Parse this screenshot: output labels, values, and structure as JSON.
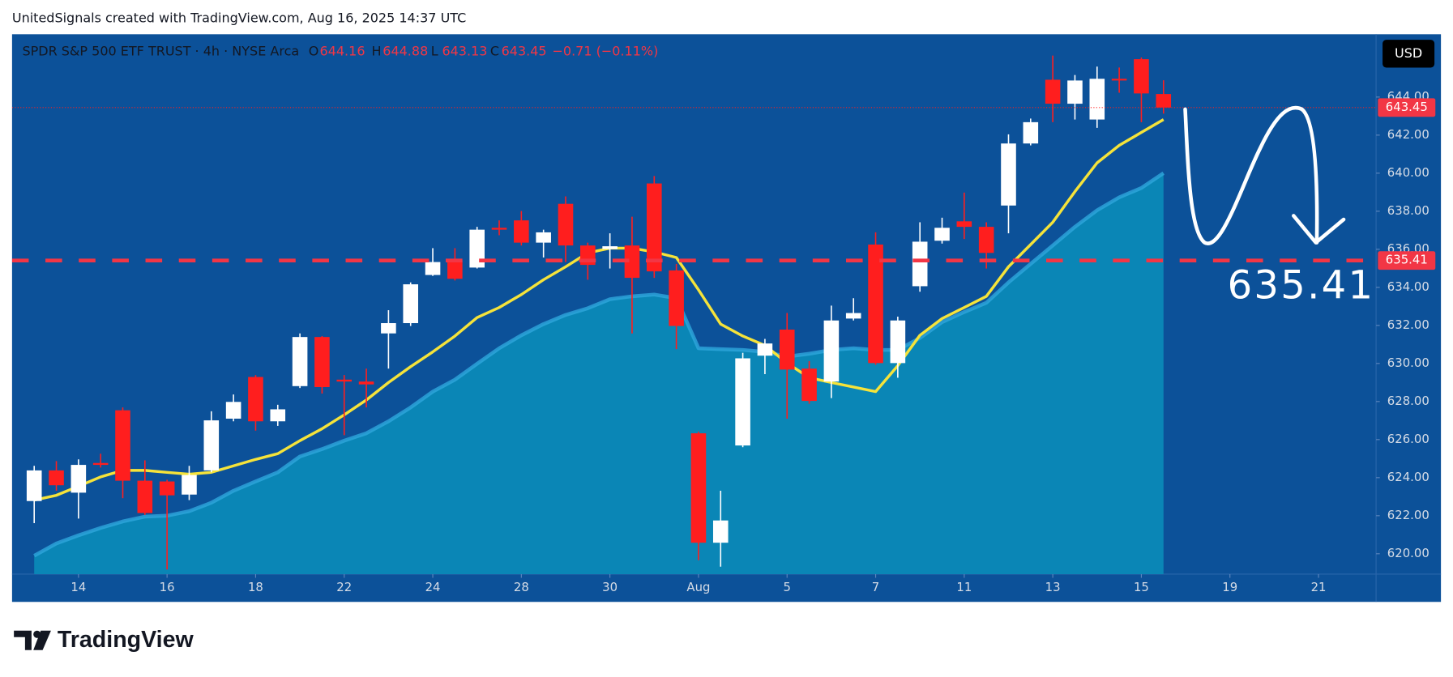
{
  "header": "UnitedSignals created with TradingView.com, Aug 16, 2025 14:37 UTC",
  "logo": "TradingView",
  "chart_data": {
    "type": "candlestick",
    "title": "SPDR S&P 500 ETF TRUST · 4h · NYSE Arca",
    "legend_keys": [
      "O",
      "H",
      "L",
      "C"
    ],
    "change_label": "−0.71 (−0.11%)",
    "currency": "USD",
    "up_color": "#ffffff",
    "down_color": "#ff1e1e",
    "background": "#0c5199",
    "open": [
      622.77,
      624.38,
      623.21,
      624.77,
      627.54,
      623.84,
      623.8,
      623.11,
      624.38,
      627.1,
      629.29,
      626.96,
      628.81,
      631.39,
      629.15,
      629.05,
      631.58,
      632.12,
      634.65,
      635.38,
      635.04,
      637.13,
      637.52,
      636.35,
      638.39,
      636.2,
      636.01,
      636.2,
      639.46,
      634.89,
      626.33,
      620.58,
      625.69,
      630.41,
      631.78,
      629.73,
      629.05,
      632.36,
      636.25,
      630.02,
      634.06,
      636.45,
      637.47,
      637.18,
      638.3,
      641.56,
      644.91,
      643.65,
      642.82,
      644.96,
      645.99,
      644.16
    ],
    "high": [
      624.62,
      624.87,
      624.96,
      625.26,
      627.69,
      624.91,
      623.89,
      624.62,
      627.49,
      628.37,
      629.39,
      627.83,
      631.58,
      631.44,
      629.39,
      629.73,
      632.8,
      634.26,
      636.06,
      636.06,
      637.18,
      637.52,
      638.01,
      637.03,
      638.78,
      636.35,
      636.84,
      637.71,
      639.85,
      635.23,
      626.42,
      623.31,
      630.56,
      631.29,
      632.65,
      630.12,
      633.04,
      633.43,
      636.89,
      632.46,
      637.42,
      637.66,
      638.98,
      637.42,
      642.04,
      642.87,
      646.18,
      645.16,
      645.6,
      645.55,
      646.08,
      644.88
    ],
    "low": [
      621.61,
      623.31,
      621.85,
      624.53,
      622.92,
      622.04,
      619.17,
      622.82,
      624.28,
      626.96,
      626.47,
      626.72,
      628.71,
      628.42,
      626.23,
      627.69,
      629.73,
      631.97,
      634.6,
      634.36,
      634.99,
      636.74,
      636.2,
      635.57,
      635.33,
      634.4,
      634.99,
      631.58,
      634.5,
      630.75,
      619.66,
      619.32,
      625.6,
      629.44,
      627.1,
      627.88,
      628.18,
      632.26,
      629.93,
      629.25,
      633.77,
      636.3,
      636.54,
      634.99,
      636.84,
      641.46,
      642.68,
      642.82,
      642.38,
      644.23,
      642.68,
      643.13
    ],
    "close": [
      624.38,
      623.6,
      624.67,
      624.67,
      623.84,
      622.14,
      623.07,
      624.14,
      627.01,
      627.98,
      626.96,
      627.59,
      631.39,
      628.76,
      629.05,
      628.9,
      632.12,
      634.16,
      635.33,
      634.45,
      637.03,
      637.03,
      636.35,
      636.89,
      636.2,
      635.18,
      636.16,
      634.5,
      634.84,
      631.97,
      620.58,
      621.75,
      630.27,
      631.05,
      629.68,
      628.03,
      632.26,
      632.65,
      630.02,
      632.26,
      636.4,
      637.13,
      637.18,
      635.81,
      641.56,
      642.68,
      643.65,
      644.87,
      644.96,
      644.87,
      644.19,
      643.45
    ],
    "overlays": [
      {
        "color": "#2ea6dc",
        "fill": "#0a86b6",
        "values": [
          619.9,
          620.54,
          620.97,
          621.36,
          621.7,
          621.95,
          622.0,
          622.24,
          622.68,
          623.31,
          623.8,
          624.28,
          625.11,
          625.5,
          625.94,
          626.33,
          626.96,
          627.69,
          628.52,
          629.15,
          629.98,
          630.8,
          631.48,
          632.07,
          632.55,
          632.9,
          633.38,
          633.53,
          633.62,
          633.43,
          630.8,
          630.75,
          630.71,
          630.61,
          630.36,
          630.51,
          630.71,
          630.8,
          630.71,
          630.71,
          631.34,
          632.17,
          632.7,
          633.19,
          634.26,
          635.23,
          636.2,
          637.18,
          638.05,
          638.73,
          639.22,
          640.0
        ]
      },
      {
        "color": "#f5e33a",
        "values": [
          622.82,
          623.07,
          623.55,
          624.04,
          624.38,
          624.38,
          624.28,
          624.18,
          624.28,
          624.62,
          624.96,
          625.26,
          625.94,
          626.57,
          627.3,
          628.08,
          629.0,
          629.83,
          630.61,
          631.44,
          632.41,
          632.94,
          633.62,
          634.4,
          635.08,
          635.81,
          636.06,
          636.06,
          635.86,
          635.57,
          633.87,
          632.07,
          631.44,
          630.95,
          630.02,
          629.25,
          629.0,
          628.76,
          628.52,
          629.88,
          631.48,
          632.36,
          632.94,
          633.53,
          635.08,
          636.25,
          637.42,
          639.03,
          640.54,
          641.46,
          642.14,
          642.82
        ]
      }
    ],
    "hline": 635.41,
    "hline_color": "#f23645",
    "ylim": [
      618.93,
      647.3
    ],
    "yticks": [
      {
        "value": 620,
        "label": "620.00"
      },
      {
        "value": 622,
        "label": "622.00"
      },
      {
        "value": 624,
        "label": "624.00"
      },
      {
        "value": 626,
        "label": "626.00"
      },
      {
        "value": 628,
        "label": "628.00"
      },
      {
        "value": 630,
        "label": "630.00"
      },
      {
        "value": 632,
        "label": "632.00"
      },
      {
        "value": 634,
        "label": "634.00"
      },
      {
        "value": 636,
        "label": "636.00"
      },
      {
        "value": 638,
        "label": "638.00"
      },
      {
        "value": 640,
        "label": "640.00"
      },
      {
        "value": 642,
        "label": "642.00"
      },
      {
        "value": 644,
        "label": "644.00"
      }
    ],
    "xlim": [
      -1,
      60.6
    ],
    "xticks": [
      {
        "value": 2,
        "label": "14"
      },
      {
        "value": 6,
        "label": "16"
      },
      {
        "value": 10,
        "label": "18"
      },
      {
        "value": 14,
        "label": "22"
      },
      {
        "value": 18,
        "label": "24"
      },
      {
        "value": 22,
        "label": "28"
      },
      {
        "value": 26,
        "label": "30"
      },
      {
        "value": 30,
        "label": "Aug"
      },
      {
        "value": 34,
        "label": "5"
      },
      {
        "value": 38,
        "label": "7"
      },
      {
        "value": 42,
        "label": "11"
      },
      {
        "value": 46,
        "label": "13"
      },
      {
        "value": 50,
        "label": "15"
      },
      {
        "value": 54,
        "label": "19"
      },
      {
        "value": 58,
        "label": "21"
      }
    ]
  }
}
